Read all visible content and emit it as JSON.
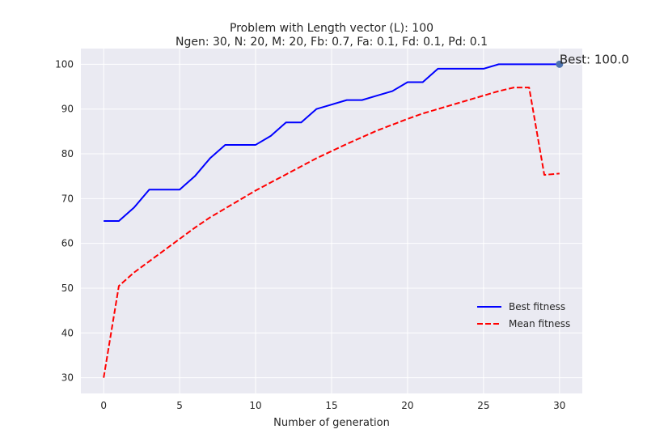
{
  "chart_data": {
    "type": "line",
    "title": "Problem with Length vector (L): 100",
    "subtitle": "Ngen: 30, N: 20, M: 20, Fb: 0.7, Fa: 0.1, Fd: 0.1, Pd: 0.1",
    "xlabel": "Number of generation",
    "ylabel": "",
    "xlim": [
      -1.5,
      31.5
    ],
    "ylim": [
      26.5,
      103.5
    ],
    "xticks": [
      0,
      5,
      10,
      15,
      20,
      25,
      30
    ],
    "yticks": [
      30,
      40,
      50,
      60,
      70,
      80,
      90,
      100
    ],
    "grid": true,
    "legend_position": "center-right",
    "x": [
      0,
      1,
      2,
      3,
      4,
      5,
      6,
      7,
      8,
      9,
      10,
      11,
      12,
      13,
      14,
      15,
      16,
      17,
      18,
      19,
      20,
      21,
      22,
      23,
      24,
      25,
      26,
      27,
      28,
      29,
      30
    ],
    "series": [
      {
        "name": "Best fitness",
        "color": "#0000ff",
        "dash": "solid",
        "values": [
          65,
          65,
          68,
          72,
          72,
          72,
          75,
          79,
          82,
          82,
          82,
          84,
          87,
          87,
          90,
          91,
          92,
          92,
          93,
          94,
          96,
          96,
          99,
          99,
          99,
          99,
          100,
          100,
          100,
          100,
          100
        ]
      },
      {
        "name": "Mean fitness",
        "color": "#ff0000",
        "dash": "dashed",
        "values": [
          30,
          50.5,
          53.5,
          56,
          58.5,
          61,
          63.5,
          65.8,
          67.8,
          69.8,
          71.8,
          73.6,
          75.4,
          77.2,
          79,
          80.6,
          82.2,
          83.7,
          85.2,
          86.5,
          87.8,
          89,
          90,
          91,
          92,
          93,
          94,
          94.8,
          94.8,
          75.3,
          75.6
        ]
      }
    ],
    "annotation": {
      "text": "Best: 100.0",
      "x": 30,
      "y": 100,
      "marker_color": "#4c72b0"
    },
    "colors": {
      "plot_background": "#eaeaf2",
      "grid": "#ffffff",
      "text": "#262626"
    }
  }
}
